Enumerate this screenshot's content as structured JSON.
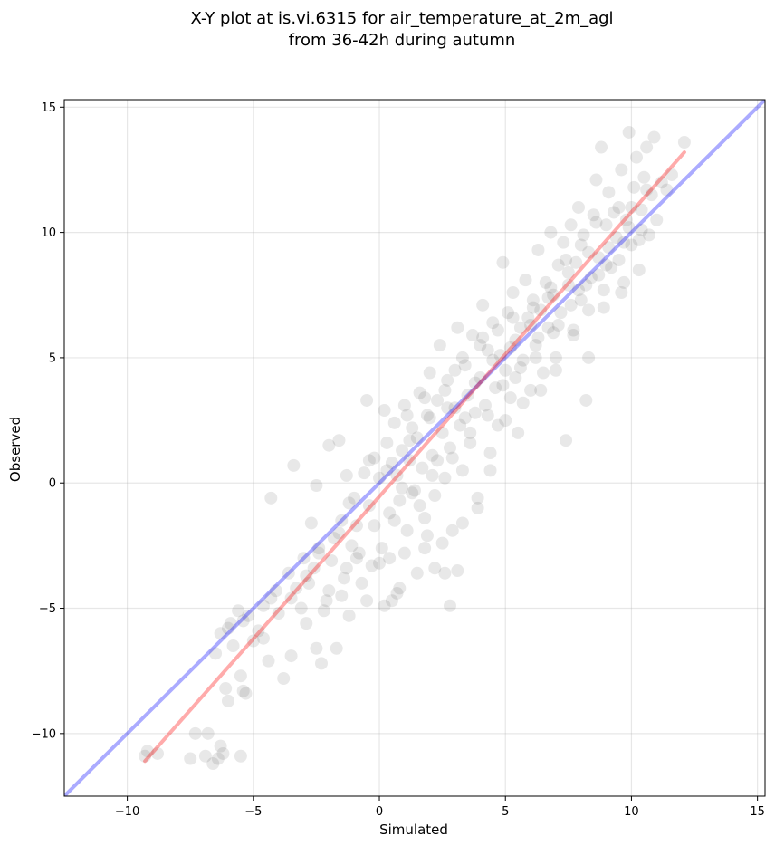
{
  "chart_data": {
    "type": "scatter",
    "title": [
      "X-Y plot at is.vi.6315 for air_temperature_at_2m_agl",
      "from 36-42h during autumn"
    ],
    "xlabel": "Simulated",
    "ylabel": "Observed",
    "xlim": [
      -12.5,
      15.3
    ],
    "ylim": [
      -12.5,
      15.3
    ],
    "xticks": [
      -10,
      -5,
      0,
      5,
      10,
      15
    ],
    "yticks": [
      -10,
      -5,
      0,
      5,
      10,
      15
    ],
    "xtick_labels": [
      "−10",
      "−5",
      "0",
      "5",
      "10",
      "15"
    ],
    "ytick_labels": [
      "−10",
      "−5",
      "0",
      "5",
      "10",
      "15"
    ],
    "grid": true,
    "point_color": "#000000",
    "point_alpha": 0.09,
    "reference_lines": [
      {
        "kind": "identity",
        "color": "#0000ff",
        "alpha": 0.33,
        "x": [
          -12.5,
          15.3
        ],
        "y": [
          -12.5,
          15.3
        ]
      },
      {
        "kind": "fit",
        "color": "#ff0000",
        "alpha": 0.33,
        "x": [
          -9.3,
          12.1
        ],
        "y": [
          -11.1,
          13.2
        ]
      }
    ],
    "points": [
      [
        -9.3,
        -10.9
      ],
      [
        -9.2,
        -10.7
      ],
      [
        -8.8,
        -10.8
      ],
      [
        -7.5,
        -11.0
      ],
      [
        -7.3,
        -10.0
      ],
      [
        -6.8,
        -10.0
      ],
      [
        -6.9,
        -10.9
      ],
      [
        -6.6,
        -11.2
      ],
      [
        -6.4,
        -11.0
      ],
      [
        -6.2,
        -10.8
      ],
      [
        -6.3,
        -10.5
      ],
      [
        -5.5,
        -10.9
      ],
      [
        -6.5,
        -6.8
      ],
      [
        -6.3,
        -6.0
      ],
      [
        -6.0,
        -5.8
      ],
      [
        -5.8,
        -6.5
      ],
      [
        -5.6,
        -5.1
      ],
      [
        -5.4,
        -5.5
      ],
      [
        -5.5,
        -7.7
      ],
      [
        -5.4,
        -8.3
      ],
      [
        -5.3,
        -8.4
      ],
      [
        -6.1,
        -8.2
      ],
      [
        -6.0,
        -8.7
      ],
      [
        -5.0,
        -6.3
      ],
      [
        -4.8,
        -5.9
      ],
      [
        -4.6,
        -6.2
      ],
      [
        -4.4,
        -7.1
      ],
      [
        -4.3,
        -4.6
      ],
      [
        -4.0,
        -5.2
      ],
      [
        -3.8,
        -7.8
      ],
      [
        -3.5,
        -6.9
      ],
      [
        -3.3,
        -4.2
      ],
      [
        -3.1,
        -5.0
      ],
      [
        -2.9,
        -5.6
      ],
      [
        -2.6,
        -3.4
      ],
      [
        -2.5,
        -6.6
      ],
      [
        -2.3,
        -7.2
      ],
      [
        -2.2,
        -5.1
      ],
      [
        -2.0,
        -4.3
      ],
      [
        -1.7,
        -6.6
      ],
      [
        -1.5,
        -4.5
      ],
      [
        -1.3,
        -3.4
      ],
      [
        -1.2,
        -5.3
      ],
      [
        -3.6,
        -3.6
      ],
      [
        -4.3,
        -0.6
      ],
      [
        -3.4,
        0.7
      ],
      [
        -2.7,
        -1.6
      ],
      [
        -2.5,
        -0.1
      ],
      [
        -2.0,
        1.5
      ],
      [
        -1.6,
        1.7
      ],
      [
        -1.3,
        0.3
      ],
      [
        -1.0,
        -0.6
      ],
      [
        -0.5,
        3.3
      ],
      [
        -0.8,
        -2.8
      ],
      [
        -0.5,
        -4.7
      ],
      [
        -0.3,
        -3.3
      ],
      [
        0.2,
        -4.9
      ],
      [
        0.5,
        -4.7
      ],
      [
        0.7,
        -4.4
      ],
      [
        0.8,
        -4.2
      ],
      [
        0.4,
        -3.0
      ],
      [
        1.5,
        -3.6
      ],
      [
        1.8,
        -2.6
      ],
      [
        2.2,
        -3.4
      ],
      [
        2.6,
        -3.6
      ],
      [
        2.8,
        -4.9
      ],
      [
        3.1,
        -3.5
      ],
      [
        -1.8,
        -2.2
      ],
      [
        -1.5,
        -1.5
      ],
      [
        -1.2,
        -0.8
      ],
      [
        -0.9,
        -1.7
      ],
      [
        -0.6,
        0.4
      ],
      [
        -0.4,
        -0.9
      ],
      [
        -0.2,
        1.0
      ],
      [
        0.0,
        0.2
      ],
      [
        0.1,
        -2.6
      ],
      [
        0.3,
        1.6
      ],
      [
        0.4,
        -1.2
      ],
      [
        0.6,
        2.4
      ],
      [
        0.7,
        0.3
      ],
      [
        0.8,
        -0.7
      ],
      [
        0.9,
        1.3
      ],
      [
        1.0,
        3.1
      ],
      [
        1.1,
        -1.9
      ],
      [
        1.2,
        0.9
      ],
      [
        1.3,
        2.2
      ],
      [
        1.4,
        -0.3
      ],
      [
        1.5,
        1.8
      ],
      [
        1.6,
        3.6
      ],
      [
        1.7,
        0.6
      ],
      [
        1.8,
        -1.4
      ],
      [
        1.9,
        2.7
      ],
      [
        2.0,
        4.4
      ],
      [
        2.1,
        1.1
      ],
      [
        2.2,
        -0.5
      ],
      [
        2.3,
        3.3
      ],
      [
        2.4,
        5.5
      ],
      [
        2.5,
        2.0
      ],
      [
        2.6,
        0.2
      ],
      [
        2.7,
        4.1
      ],
      [
        2.8,
        1.4
      ],
      [
        2.9,
        -1.9
      ],
      [
        3.0,
        3.0
      ],
      [
        3.1,
        6.2
      ],
      [
        3.2,
        2.3
      ],
      [
        3.3,
        0.5
      ],
      [
        3.4,
        4.7
      ],
      [
        3.5,
        3.5
      ],
      [
        3.6,
        1.6
      ],
      [
        3.7,
        5.9
      ],
      [
        3.8,
        2.8
      ],
      [
        3.9,
        -0.6
      ],
      [
        4.0,
        4.2
      ],
      [
        4.1,
        7.1
      ],
      [
        4.2,
        3.1
      ],
      [
        4.3,
        5.3
      ],
      [
        4.4,
        1.2
      ],
      [
        4.5,
        6.4
      ],
      [
        4.6,
        3.8
      ],
      [
        4.7,
        2.3
      ],
      [
        4.8,
        5.1
      ],
      [
        4.9,
        8.8
      ],
      [
        5.0,
        4.5
      ],
      [
        5.1,
        6.8
      ],
      [
        5.2,
        3.4
      ],
      [
        5.3,
        7.6
      ],
      [
        5.4,
        5.7
      ],
      [
        5.5,
        2.0
      ],
      [
        5.6,
        6.2
      ],
      [
        5.7,
        4.9
      ],
      [
        5.8,
        8.1
      ],
      [
        5.9,
        6.6
      ],
      [
        6.0,
        3.7
      ],
      [
        6.1,
        7.3
      ],
      [
        6.2,
        5.5
      ],
      [
        6.3,
        9.3
      ],
      [
        6.4,
        6.9
      ],
      [
        6.5,
        4.4
      ],
      [
        6.6,
        8.0
      ],
      [
        6.7,
        6.2
      ],
      [
        6.8,
        10.0
      ],
      [
        6.9,
        7.5
      ],
      [
        7.0,
        5.0
      ],
      [
        7.1,
        8.7
      ],
      [
        7.2,
        6.8
      ],
      [
        7.3,
        9.6
      ],
      [
        7.4,
        1.7
      ],
      [
        7.5,
        7.9
      ],
      [
        7.6,
        10.3
      ],
      [
        7.7,
        5.9
      ],
      [
        7.8,
        8.8
      ],
      [
        7.9,
        11.0
      ],
      [
        8.0,
        7.3
      ],
      [
        8.1,
        9.9
      ],
      [
        8.2,
        3.3
      ],
      [
        8.3,
        5.0
      ],
      [
        8.4,
        8.2
      ],
      [
        8.5,
        10.7
      ],
      [
        8.6,
        12.1
      ],
      [
        8.7,
        9.0
      ],
      [
        8.8,
        13.4
      ],
      [
        8.9,
        7.7
      ],
      [
        9.0,
        10.3
      ],
      [
        9.1,
        11.6
      ],
      [
        9.2,
        8.6
      ],
      [
        9.4,
        9.8
      ],
      [
        9.5,
        11.0
      ],
      [
        9.6,
        12.5
      ],
      [
        9.7,
        8.0
      ],
      [
        9.8,
        10.5
      ],
      [
        9.9,
        14.0
      ],
      [
        10.0,
        9.5
      ],
      [
        10.1,
        11.8
      ],
      [
        10.2,
        13.0
      ],
      [
        10.3,
        8.5
      ],
      [
        10.4,
        10.9
      ],
      [
        10.5,
        12.2
      ],
      [
        10.6,
        13.4
      ],
      [
        10.7,
        9.9
      ],
      [
        10.8,
        11.5
      ],
      [
        10.9,
        13.8
      ],
      [
        11.0,
        10.5
      ],
      [
        11.2,
        12.0
      ],
      [
        11.4,
        11.7
      ],
      [
        11.6,
        12.3
      ],
      [
        12.1,
        13.6
      ],
      [
        0.2,
        2.9
      ],
      [
        0.5,
        0.8
      ],
      [
        0.9,
        -0.2
      ],
      [
        1.2,
        1.7
      ],
      [
        1.6,
        -0.9
      ],
      [
        2.0,
        2.6
      ],
      [
        2.3,
        0.9
      ],
      [
        2.7,
        3.0
      ],
      [
        3.0,
        4.5
      ],
      [
        3.4,
        2.6
      ],
      [
        3.8,
        4.0
      ],
      [
        4.1,
        5.8
      ],
      [
        4.5,
        4.9
      ],
      [
        4.9,
        3.9
      ],
      [
        5.2,
        5.4
      ],
      [
        5.6,
        4.6
      ],
      [
        6.0,
        6.3
      ],
      [
        6.3,
        5.8
      ],
      [
        6.7,
        7.4
      ],
      [
        7.1,
        6.3
      ],
      [
        7.5,
        8.4
      ],
      [
        7.9,
        7.7
      ],
      [
        8.3,
        9.2
      ],
      [
        8.7,
        8.3
      ],
      [
        9.1,
        9.4
      ],
      [
        9.5,
        8.9
      ],
      [
        9.9,
        10.2
      ],
      [
        10.3,
        9.7
      ],
      [
        -2.4,
        -2.8
      ],
      [
        -1.9,
        -3.1
      ],
      [
        -1.1,
        -2.5
      ],
      [
        -0.7,
        -4.0
      ],
      [
        0.0,
        -3.2
      ],
      [
        1.0,
        -2.8
      ],
      [
        1.9,
        -2.1
      ],
      [
        2.5,
        -2.4
      ],
      [
        3.3,
        -1.6
      ],
      [
        3.9,
        -1.0
      ],
      [
        4.4,
        0.5
      ],
      [
        5.0,
        2.5
      ],
      [
        5.7,
        3.2
      ],
      [
        6.4,
        3.7
      ],
      [
        7.0,
        4.5
      ],
      [
        7.7,
        6.1
      ],
      [
        8.3,
        6.9
      ],
      [
        8.9,
        7.0
      ],
      [
        9.6,
        7.6
      ],
      [
        -3.0,
        -3.0
      ],
      [
        -2.8,
        -4.0
      ],
      [
        -2.1,
        -4.7
      ],
      [
        -1.4,
        -3.8
      ],
      [
        -0.9,
        -3.0
      ],
      [
        -0.2,
        -1.7
      ],
      [
        0.6,
        -1.5
      ],
      [
        1.3,
        -0.4
      ],
      [
        2.1,
        0.3
      ],
      [
        2.9,
        1.0
      ],
      [
        3.6,
        2.0
      ],
      [
        4.3,
        2.7
      ],
      [
        5.4,
        4.2
      ],
      [
        6.2,
        5.0
      ],
      [
        6.9,
        6.0
      ],
      [
        7.6,
        7.1
      ],
      [
        8.2,
        7.9
      ],
      [
        9.0,
        8.7
      ],
      [
        9.7,
        9.6
      ],
      [
        10.4,
        10.1
      ],
      [
        -5.9,
        -5.6
      ],
      [
        -5.2,
        -5.3
      ],
      [
        -4.6,
        -4.9
      ],
      [
        -4.1,
        -4.3
      ],
      [
        -3.5,
        -4.6
      ],
      [
        -2.9,
        -3.7
      ],
      [
        -2.4,
        -2.6
      ],
      [
        -1.6,
        -2.0
      ],
      [
        -0.4,
        0.9
      ],
      [
        0.3,
        0.5
      ],
      [
        1.1,
        2.7
      ],
      [
        1.8,
        3.4
      ],
      [
        2.6,
        3.7
      ],
      [
        3.3,
        5.0
      ],
      [
        4.0,
        5.5
      ],
      [
        4.7,
        6.1
      ],
      [
        5.3,
        6.6
      ],
      [
        6.1,
        7.0
      ],
      [
        6.8,
        7.8
      ],
      [
        7.4,
        8.9
      ],
      [
        8.0,
        9.5
      ],
      [
        8.6,
        10.4
      ],
      [
        9.3,
        10.8
      ],
      [
        10.0,
        11.0
      ],
      [
        10.6,
        11.7
      ]
    ]
  }
}
